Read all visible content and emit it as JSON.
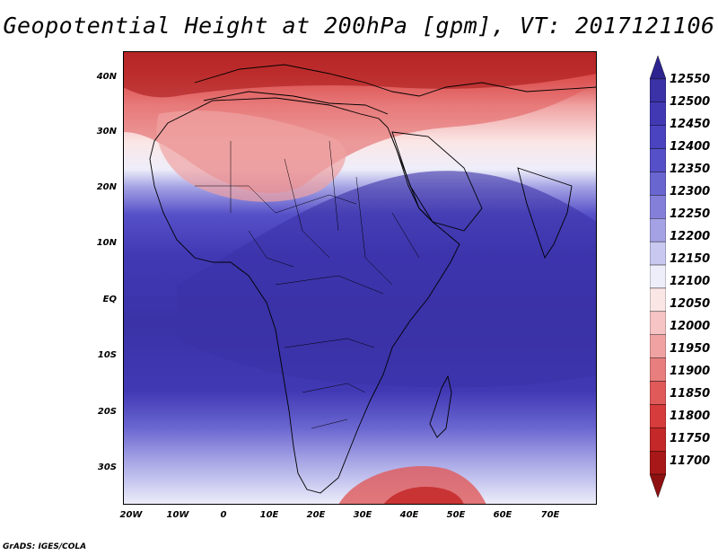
{
  "title": "Geopotential Height at 200hPa [gpm], VT: 2017121106",
  "credit": "GrADS: IGES/COLA",
  "map": {
    "region": "Africa and surroundings",
    "projection": "latlon",
    "lon_range": [
      -25,
      80
    ],
    "lat_range": [
      -37,
      45
    ],
    "lat_ticks": [
      "40N",
      "30N",
      "20N",
      "10N",
      "EQ",
      "10S",
      "20S",
      "30S"
    ],
    "lon_ticks": [
      "20W",
      "10W",
      "0",
      "10E",
      "20E",
      "30E",
      "40E",
      "50E",
      "60E",
      "70E"
    ],
    "field": "Geopotential Height at 200hPa",
    "units": "gpm"
  },
  "colorbar": {
    "levels": [
      "12550",
      "12500",
      "12450",
      "12400",
      "12350",
      "12300",
      "12250",
      "12200",
      "12150",
      "12100",
      "12050",
      "12000",
      "11950",
      "11900",
      "11850",
      "11800",
      "11750",
      "11700"
    ],
    "colors_top_to_bottom": [
      "#2d2490",
      "#3a32a6",
      "#4139b4",
      "#4a44c0",
      "#5650c8",
      "#6a66d0",
      "#8480da",
      "#a4a2e4",
      "#c8c8f0",
      "#eeeefa",
      "#fbe6e6",
      "#f6c4c4",
      "#f0a2a2",
      "#e87e7e",
      "#e05a5a",
      "#d63c3c",
      "#c42828",
      "#a81818",
      "#8e1010"
    ],
    "ends": "triangles"
  }
}
